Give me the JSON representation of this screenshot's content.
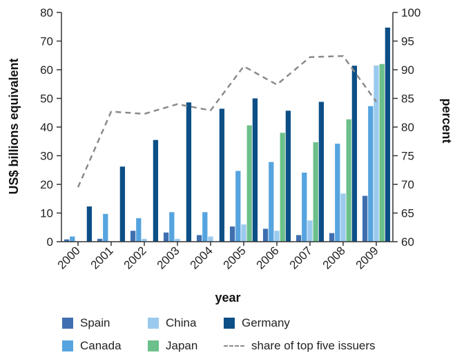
{
  "chart_data": {
    "type": "bar",
    "categories": [
      "2000",
      "2001",
      "2002",
      "2003",
      "2004",
      "2005",
      "2006",
      "2007",
      "2008",
      "2009"
    ],
    "series": [
      {
        "name": "Spain",
        "color": "#3f6faf",
        "values": [
          0.8,
          1.0,
          3.8,
          3.2,
          2.3,
          5.3,
          4.5,
          2.3,
          3.0,
          16.0
        ]
      },
      {
        "name": "Canada",
        "color": "#56a4df",
        "values": [
          1.8,
          9.7,
          8.2,
          10.3,
          10.3,
          24.7,
          27.8,
          24.1,
          34.2,
          47.3
        ]
      },
      {
        "name": "China",
        "color": "#9bcaee",
        "values": [
          0.0,
          0.0,
          1.0,
          1.0,
          1.8,
          6.0,
          3.8,
          7.4,
          16.8,
          61.5
        ]
      },
      {
        "name": "Japan",
        "color": "#6cc08b",
        "values": [
          0.0,
          0.0,
          0.0,
          0.0,
          0.0,
          40.6,
          38.0,
          34.7,
          42.7,
          62.0
        ]
      },
      {
        "name": "Germany",
        "color": "#0b4f86",
        "values": [
          12.3,
          26.2,
          35.5,
          48.6,
          46.4,
          50.0,
          45.7,
          48.8,
          61.4,
          74.7
        ]
      }
    ],
    "line_series": {
      "name": "share of top five issuers",
      "color": "#8a8a8a",
      "axis": "right",
      "values": [
        69.5,
        82.7,
        82.3,
        84.0,
        82.9,
        90.6,
        87.4,
        92.2,
        92.4,
        84.4
      ]
    },
    "xlabel": "year",
    "ylabel": "US$ billions equivalent",
    "ylabel_right": "percent",
    "ylim": [
      0,
      80
    ],
    "ylim_right": [
      60,
      100
    ],
    "yticks": [
      "0",
      "10",
      "20",
      "30",
      "40",
      "50",
      "60",
      "70",
      "80"
    ],
    "yticks_right": [
      "60",
      "65",
      "70",
      "75",
      "80",
      "85",
      "90",
      "95",
      "100"
    ],
    "grid": false,
    "legend_position": "bottom"
  },
  "legend": {
    "spain": "Spain",
    "china": "China",
    "germany": "Germany",
    "canada": "Canada",
    "japan": "Japan",
    "share": "share of top five issuers"
  }
}
